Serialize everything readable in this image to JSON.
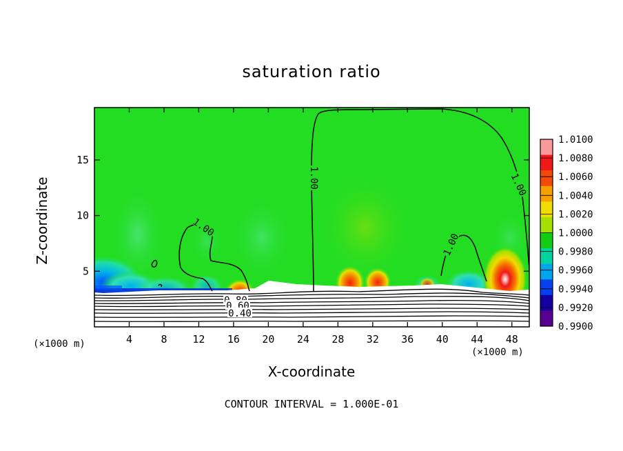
{
  "chart_data": {
    "type": "heatmap",
    "title": "saturation ratio",
    "xlabel": "X-coordinate",
    "ylabel": "Z-coordinate",
    "x_unit_label": "(×1000 m)",
    "note": "CONTOUR INTERVAL = 1.000E-01",
    "xlim": [
      0,
      50
    ],
    "ylim": [
      0,
      19.7
    ],
    "x_ticks": [
      4,
      8,
      12,
      16,
      20,
      24,
      28,
      32,
      36,
      40,
      44,
      48
    ],
    "y_ticks": [
      5,
      10,
      15
    ],
    "colorbar": {
      "levels": [
        "1.0100",
        "1.0080",
        "1.0060",
        "1.0040",
        "1.0020",
        "1.0000",
        "0.9980",
        "0.9960",
        "0.9940",
        "0.9920",
        "0.9900"
      ],
      "colors": [
        "#f89a9a",
        "#f01818",
        "#f24b09",
        "#f6a000",
        "#f0dc00",
        "#a4e000",
        "#14cc14",
        "#00d2a0",
        "#00a6ec",
        "#0640f0",
        "#1400a0",
        "#5a0090"
      ]
    },
    "contour_labels": [
      "1.00",
      "1.00",
      "1.00",
      "1.00",
      "1.00",
      "0.80",
      "0.60",
      "0.40"
    ],
    "background_color": "#22dd22"
  }
}
